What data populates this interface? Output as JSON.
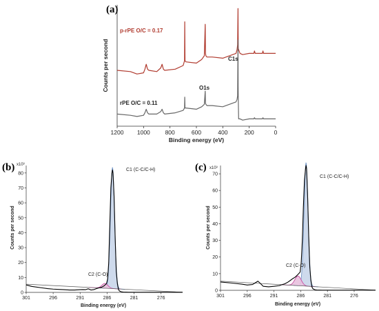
{
  "chart_data": [
    {
      "panel": "(a)",
      "type": "line",
      "xlabel": "Binding energy (eV)",
      "ylabel": "Counts per second",
      "xlim": [
        1200,
        0
      ],
      "x_reversed": true,
      "xticks": [
        "1200",
        "1000",
        "800",
        "600",
        "400",
        "200",
        "0"
      ],
      "grid": false,
      "series": [
        {
          "name": "p-rPE  O/C = 0.17",
          "color": "#b03a2e",
          "x": [
            1200,
            1100,
            1050,
            1000,
            990,
            980,
            970,
            960,
            900,
            870,
            860,
            850,
            840,
            760,
            700,
            690,
            688,
            686,
            680,
            600,
            560,
            540,
            533,
            531,
            528,
            520,
            480,
            400,
            350,
            300,
            292,
            288,
            285,
            284,
            283,
            280,
            270,
            250,
            200,
            165,
            160,
            155,
            120,
            100,
            96,
            92,
            50,
            0
          ],
          "y": [
            0.46,
            0.45,
            0.43,
            0.44,
            0.47,
            0.51,
            0.47,
            0.46,
            0.45,
            0.48,
            0.51,
            0.47,
            0.46,
            0.47,
            0.5,
            0.54,
            0.86,
            0.54,
            0.53,
            0.52,
            0.55,
            0.58,
            0.84,
            0.6,
            0.58,
            0.57,
            0.57,
            0.56,
            0.58,
            0.6,
            0.63,
            0.67,
            0.97,
            0.76,
            0.64,
            0.63,
            0.6,
            0.59,
            0.6,
            0.6,
            0.62,
            0.6,
            0.6,
            0.6,
            0.62,
            0.6,
            0.6,
            0.6
          ],
          "label": "p-rPE  O/C = 0.17"
        },
        {
          "name": "rPE  O/C = 0.11",
          "color": "#666666",
          "x": [
            1200,
            1100,
            1050,
            1000,
            990,
            980,
            970,
            960,
            900,
            870,
            860,
            850,
            840,
            760,
            700,
            690,
            688,
            686,
            680,
            600,
            560,
            540,
            533,
            531,
            528,
            520,
            480,
            400,
            350,
            300,
            292,
            288,
            285,
            284,
            283,
            280,
            270,
            250,
            200,
            165,
            160,
            155,
            120,
            100,
            96,
            92,
            50,
            0
          ],
          "y": [
            0.1,
            0.09,
            0.08,
            0.09,
            0.11,
            0.14,
            0.11,
            0.1,
            0.1,
            0.12,
            0.14,
            0.11,
            0.1,
            0.11,
            0.13,
            0.15,
            0.24,
            0.15,
            0.15,
            0.14,
            0.16,
            0.18,
            0.29,
            0.19,
            0.18,
            0.17,
            0.17,
            0.16,
            0.18,
            0.2,
            0.22,
            0.25,
            0.71,
            0.33,
            0.22,
            0.06,
            0.06,
            0.05,
            0.06,
            0.06,
            0.07,
            0.06,
            0.06,
            0.06,
            0.07,
            0.06,
            0.06,
            0.06
          ],
          "label": "rPE  O/C = 0.11"
        }
      ],
      "annotations": [
        "C1s",
        "O1s"
      ]
    },
    {
      "panel": "(b)",
      "type": "line",
      "xlabel": "Binding energy (eV)",
      "ylabel": "Counts per second",
      "y_multiplier": "x10³",
      "xlim": [
        301,
        272
      ],
      "x_reversed": true,
      "ylim": [
        0,
        85
      ],
      "xticks": [
        "301",
        "296",
        "291",
        "286",
        "281",
        "276"
      ],
      "yticks": [
        "0",
        "10",
        "20",
        "30",
        "40",
        "50",
        "60",
        "70",
        "80"
      ],
      "grid": false,
      "series": [
        {
          "name": "measured",
          "color": "#000000",
          "x": [
            301,
            300,
            298,
            297,
            296,
            295,
            294,
            293,
            292,
            291,
            290.5,
            290,
            289.5,
            289,
            288.5,
            288,
            287.5,
            287,
            286.5,
            286.1,
            285.9,
            285.7,
            285.5,
            285.3,
            285.1,
            285.0,
            284.9,
            284.7,
            284.5,
            284.3,
            284.1,
            283.9,
            283.7,
            283.3,
            283,
            282,
            280,
            278,
            276,
            272
          ],
          "y": [
            5,
            4,
            3,
            2.5,
            2.2,
            2,
            1.8,
            1.6,
            1.6,
            1.8,
            1.9,
            1.8,
            2.4,
            1.6,
            1.8,
            2.5,
            3,
            3.5,
            4.5,
            6,
            9,
            20,
            45,
            70,
            80,
            82,
            80,
            64,
            36,
            14,
            6,
            2,
            0.9,
            0.3,
            0.2,
            0.1,
            0.1,
            0.1,
            0.1,
            0.1
          ]
        },
        {
          "name": "C1 (C-C/C-H)",
          "color": "#6f93c4",
          "fill": "#c9d6ea",
          "center": 285.0,
          "height": 81,
          "fwhm": 0.9
        },
        {
          "name": "C2 (C-O)",
          "color": "#c94fa3",
          "fill": "#e8c1de",
          "center": 286.4,
          "height": 3.2,
          "fwhm": 1.3
        },
        {
          "name": "baseline",
          "color": "#555555",
          "x": [
            301,
            272
          ],
          "y": [
            5.5,
            0.1
          ]
        }
      ],
      "annotations": [
        "C1 (C-C/C-H)",
        "C2 (C-O)"
      ]
    },
    {
      "panel": "(c)",
      "type": "line",
      "xlabel": "Binding energy (eV)",
      "ylabel": "Counts per second",
      "y_multiplier": "x10³",
      "xlim": [
        301,
        272
      ],
      "x_reversed": true,
      "ylim": [
        0,
        75
      ],
      "xticks": [
        "301",
        "296",
        "291",
        "286",
        "281",
        "276"
      ],
      "yticks": [
        "0",
        "10",
        "20",
        "30",
        "40",
        "50",
        "60",
        "70"
      ],
      "grid": false,
      "series": [
        {
          "name": "measured",
          "color": "#000000",
          "x": [
            301,
            299,
            297,
            296,
            295,
            294.5,
            294,
            293.5,
            293,
            292,
            291,
            290,
            289.5,
            289,
            288.5,
            288,
            287.5,
            287,
            286.5,
            286.1,
            285.9,
            285.7,
            285.5,
            285.3,
            285.1,
            285.0,
            284.9,
            284.7,
            284.5,
            284.3,
            284.1,
            283.9,
            283.7,
            283.3,
            283,
            282,
            280,
            278,
            276,
            272
          ],
          "y": [
            5,
            4.4,
            3.7,
            3.2,
            3.5,
            4.5,
            5.5,
            4,
            2.4,
            2.1,
            2.4,
            2.8,
            3.4,
            3.9,
            4.7,
            5.8,
            7,
            8,
            9.6,
            11,
            17,
            30,
            50,
            66,
            73,
            75,
            73,
            56,
            32,
            14,
            6,
            2,
            0.9,
            0.3,
            0.2,
            0.1,
            0.1,
            0.1,
            0.1,
            0.1
          ]
        },
        {
          "name": "C1 (C-C/C-H)",
          "color": "#6f93c4",
          "fill": "#c9d6ea",
          "center": 285.0,
          "height": 74,
          "fwhm": 0.9
        },
        {
          "name": "C2 (C-O)",
          "color": "#c94fa3",
          "fill": "#e8c1de",
          "center": 286.5,
          "height": 5.8,
          "fwhm": 1.4
        },
        {
          "name": "baseline",
          "color": "#555555",
          "x": [
            301,
            272
          ],
          "y": [
            5.5,
            0.1
          ]
        }
      ],
      "annotations": [
        "C1 (C-C/C-H)",
        "C2 (C-O)"
      ]
    }
  ]
}
